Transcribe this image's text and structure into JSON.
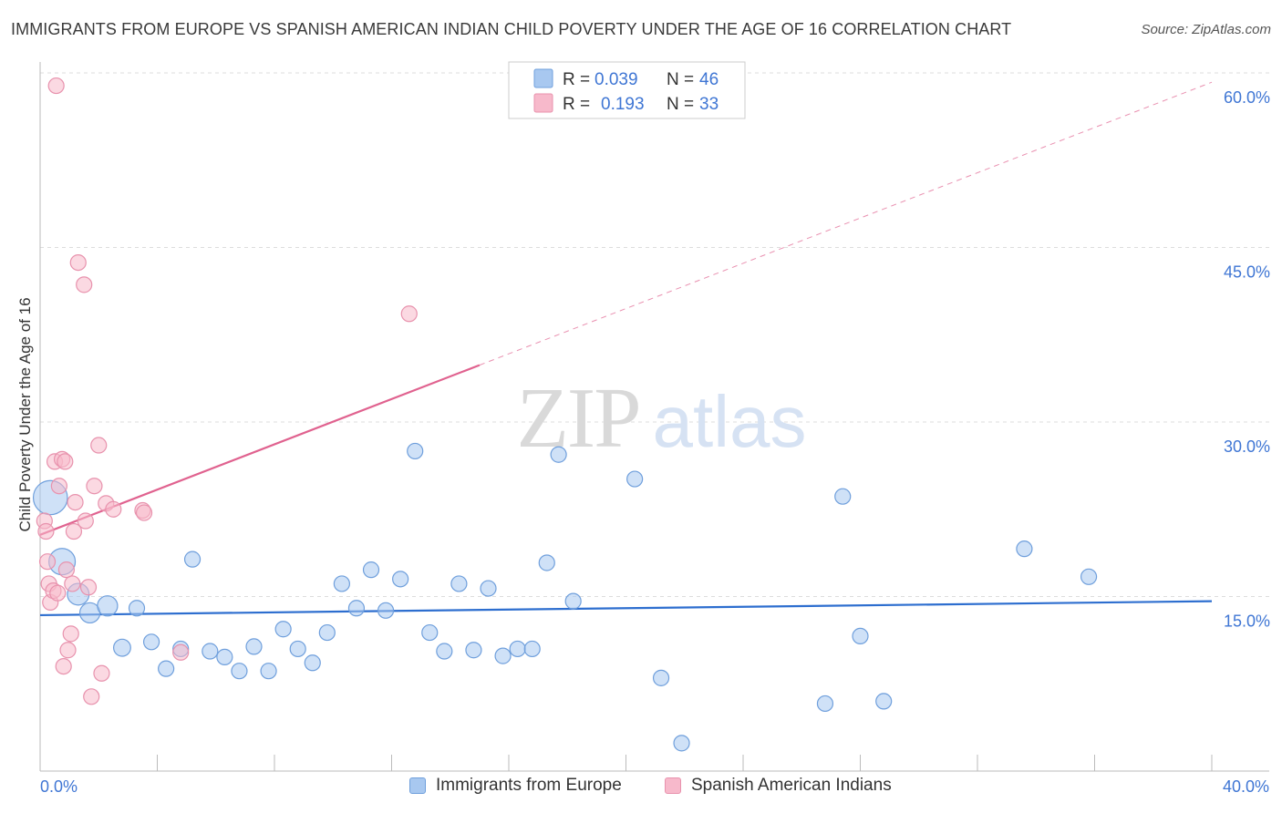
{
  "title": "IMMIGRANTS FROM EUROPE VS SPANISH AMERICAN INDIAN CHILD POVERTY UNDER THE AGE OF 16 CORRELATION CHART",
  "source": "Source: ZipAtlas.com",
  "watermark": {
    "zip": "ZIP",
    "atlas": "atlas"
  },
  "colors": {
    "blue_fill": "#a8c8f0",
    "blue_stroke": "#6f9fdc",
    "blue_line": "#2d6ecf",
    "pink_fill": "#f7b9cb",
    "pink_stroke": "#e892ad",
    "pink_line": "#e0628f",
    "axis_text": "#3f76d4",
    "grid": "#dddddd"
  },
  "legend": {
    "rows": [
      {
        "r_label": "R =",
        "r_value": "0.039",
        "n_label": "N =",
        "n_value": "46"
      },
      {
        "r_label": "R =",
        "r_value": "0.193",
        "n_label": "N =",
        "n_value": "33"
      }
    ]
  },
  "bottom_legend": {
    "blue_label": "Immigrants from Europe",
    "pink_label": "Spanish American Indians"
  },
  "chart_data": {
    "type": "scatter",
    "title": "IMMIGRANTS FROM EUROPE VS SPANISH AMERICAN INDIAN CHILD POVERTY UNDER THE AGE OF 16 CORRELATION CHART",
    "xlabel": "",
    "ylabel": "Child Poverty Under the Age of 16",
    "xlim": [
      0,
      40
    ],
    "ylim": [
      0,
      60
    ],
    "x_tick_labels": [
      "0.0%",
      "40.0%"
    ],
    "y_ticks": [
      15,
      30,
      45,
      60
    ],
    "y_tick_labels": [
      "15.0%",
      "30.0%",
      "45.0%",
      "60.0%"
    ],
    "series": [
      {
        "name": "Immigrants from Europe",
        "color": "blue",
        "R": 0.039,
        "N": 46,
        "trend": {
          "x1": 0,
          "y1": 13.4,
          "x2": 40,
          "y2": 14.6,
          "solid_until": 40
        },
        "points": [
          {
            "x": 0.35,
            "y": 23.5,
            "s": 2.2
          },
          {
            "x": 0.75,
            "y": 18.0,
            "s": 1.7
          },
          {
            "x": 1.3,
            "y": 15.2,
            "s": 1.4
          },
          {
            "x": 1.7,
            "y": 13.6,
            "s": 1.3
          },
          {
            "x": 2.3,
            "y": 14.2,
            "s": 1.3
          },
          {
            "x": 2.8,
            "y": 10.6,
            "s": 1.1
          },
          {
            "x": 3.3,
            "y": 14.0,
            "s": 1.0
          },
          {
            "x": 3.8,
            "y": 11.1,
            "s": 1.0
          },
          {
            "x": 4.3,
            "y": 8.8,
            "s": 1.0
          },
          {
            "x": 4.8,
            "y": 10.5,
            "s": 1.0
          },
          {
            "x": 5.2,
            "y": 18.2,
            "s": 1.0
          },
          {
            "x": 5.8,
            "y": 10.3,
            "s": 1.0
          },
          {
            "x": 6.3,
            "y": 9.8,
            "s": 1.0
          },
          {
            "x": 6.8,
            "y": 8.6,
            "s": 1.0
          },
          {
            "x": 7.3,
            "y": 10.7,
            "s": 1.0
          },
          {
            "x": 7.8,
            "y": 8.6,
            "s": 1.0
          },
          {
            "x": 8.3,
            "y": 12.2,
            "s": 1.0
          },
          {
            "x": 8.8,
            "y": 10.5,
            "s": 1.0
          },
          {
            "x": 9.3,
            "y": 9.3,
            "s": 1.0
          },
          {
            "x": 9.8,
            "y": 11.9,
            "s": 1.0
          },
          {
            "x": 10.3,
            "y": 16.1,
            "s": 1.0
          },
          {
            "x": 10.8,
            "y": 14.0,
            "s": 1.0
          },
          {
            "x": 11.3,
            "y": 17.3,
            "s": 1.0
          },
          {
            "x": 11.8,
            "y": 13.8,
            "s": 1.0
          },
          {
            "x": 12.3,
            "y": 16.5,
            "s": 1.0
          },
          {
            "x": 12.8,
            "y": 27.5,
            "s": 1.0
          },
          {
            "x": 13.3,
            "y": 11.9,
            "s": 1.0
          },
          {
            "x": 13.8,
            "y": 10.3,
            "s": 1.0
          },
          {
            "x": 14.3,
            "y": 16.1,
            "s": 1.0
          },
          {
            "x": 14.8,
            "y": 10.4,
            "s": 1.0
          },
          {
            "x": 15.3,
            "y": 15.7,
            "s": 1.0
          },
          {
            "x": 15.8,
            "y": 9.9,
            "s": 1.0
          },
          {
            "x": 16.3,
            "y": 10.5,
            "s": 1.0
          },
          {
            "x": 16.8,
            "y": 10.5,
            "s": 1.0
          },
          {
            "x": 17.3,
            "y": 17.9,
            "s": 1.0
          },
          {
            "x": 17.7,
            "y": 27.2,
            "s": 1.0
          },
          {
            "x": 18.2,
            "y": 14.6,
            "s": 1.0
          },
          {
            "x": 20.3,
            "y": 25.1,
            "s": 1.0
          },
          {
            "x": 21.2,
            "y": 8.0,
            "s": 1.0
          },
          {
            "x": 21.9,
            "y": 2.4,
            "s": 1.0
          },
          {
            "x": 26.8,
            "y": 5.8,
            "s": 1.0
          },
          {
            "x": 27.4,
            "y": 23.6,
            "s": 1.0
          },
          {
            "x": 28.0,
            "y": 11.6,
            "s": 1.0
          },
          {
            "x": 28.8,
            "y": 6.0,
            "s": 1.0
          },
          {
            "x": 33.6,
            "y": 19.1,
            "s": 1.0
          },
          {
            "x": 35.8,
            "y": 16.7,
            "s": 1.0
          }
        ]
      },
      {
        "name": "Spanish American Indians",
        "color": "pink",
        "R": 0.193,
        "N": 33,
        "trend": {
          "x1": 0,
          "y1": 20.3,
          "x2": 40,
          "y2": 59.2,
          "solid_until": 15.0
        },
        "points": [
          {
            "x": 0.15,
            "y": 21.5,
            "s": 1.0
          },
          {
            "x": 0.2,
            "y": 20.6,
            "s": 1.0
          },
          {
            "x": 0.25,
            "y": 18.0,
            "s": 1.0
          },
          {
            "x": 0.3,
            "y": 16.1,
            "s": 1.0
          },
          {
            "x": 0.35,
            "y": 14.5,
            "s": 1.0
          },
          {
            "x": 0.45,
            "y": 15.5,
            "s": 1.0
          },
          {
            "x": 0.5,
            "y": 26.6,
            "s": 1.0
          },
          {
            "x": 0.55,
            "y": 58.9,
            "s": 1.0
          },
          {
            "x": 0.6,
            "y": 15.3,
            "s": 1.0
          },
          {
            "x": 0.65,
            "y": 24.5,
            "s": 1.0
          },
          {
            "x": 0.75,
            "y": 26.8,
            "s": 1.0
          },
          {
            "x": 0.8,
            "y": 9.0,
            "s": 1.0
          },
          {
            "x": 0.85,
            "y": 26.6,
            "s": 1.0
          },
          {
            "x": 0.9,
            "y": 17.3,
            "s": 1.0
          },
          {
            "x": 0.95,
            "y": 10.4,
            "s": 1.0
          },
          {
            "x": 1.05,
            "y": 11.8,
            "s": 1.0
          },
          {
            "x": 1.1,
            "y": 16.1,
            "s": 1.0
          },
          {
            "x": 1.15,
            "y": 20.6,
            "s": 1.0
          },
          {
            "x": 1.2,
            "y": 23.1,
            "s": 1.0
          },
          {
            "x": 1.3,
            "y": 43.7,
            "s": 1.0
          },
          {
            "x": 1.5,
            "y": 41.8,
            "s": 1.0
          },
          {
            "x": 1.55,
            "y": 21.5,
            "s": 1.0
          },
          {
            "x": 1.65,
            "y": 15.8,
            "s": 1.0
          },
          {
            "x": 1.75,
            "y": 6.4,
            "s": 1.0
          },
          {
            "x": 1.85,
            "y": 24.5,
            "s": 1.0
          },
          {
            "x": 2.0,
            "y": 28.0,
            "s": 1.0
          },
          {
            "x": 2.1,
            "y": 8.4,
            "s": 1.0
          },
          {
            "x": 2.25,
            "y": 23.0,
            "s": 1.0
          },
          {
            "x": 2.5,
            "y": 22.5,
            "s": 1.0
          },
          {
            "x": 3.5,
            "y": 22.4,
            "s": 1.0
          },
          {
            "x": 3.55,
            "y": 22.2,
            "s": 1.0
          },
          {
            "x": 4.8,
            "y": 10.2,
            "s": 1.0
          },
          {
            "x": 12.6,
            "y": 39.3,
            "s": 1.0
          }
        ]
      }
    ]
  }
}
